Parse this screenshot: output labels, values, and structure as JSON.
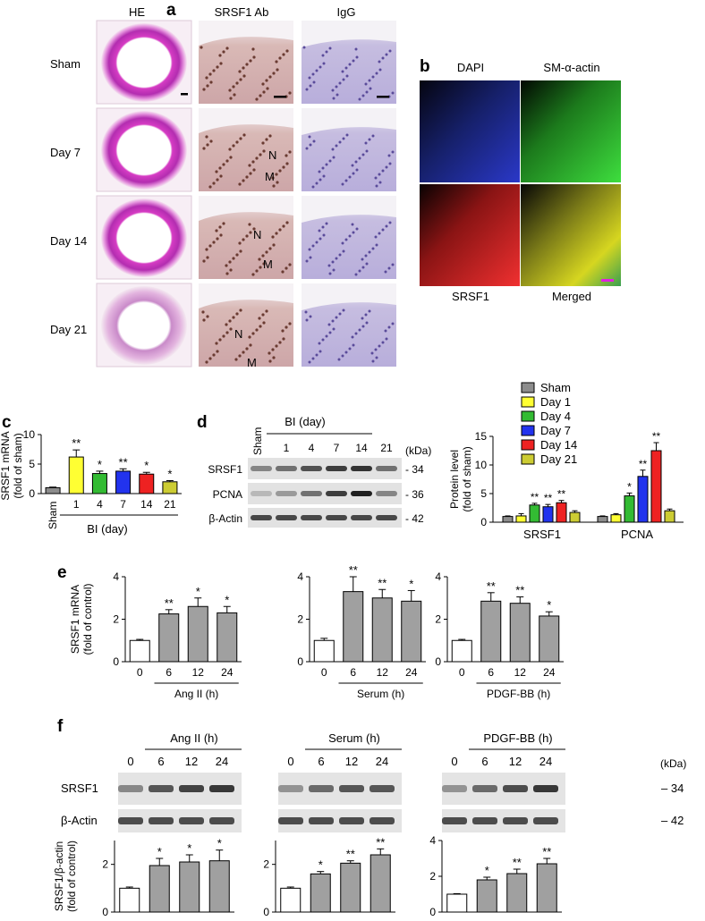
{
  "panels": {
    "a": {
      "letter": "a",
      "columns": [
        "HE",
        "SRSF1 Ab",
        "IgG"
      ],
      "rows": [
        "Sham",
        "Day 7",
        "Day 14",
        "Day 21"
      ],
      "layer_labels": [
        {
          "row": 1,
          "neointima": "N",
          "media": "M"
        },
        {
          "row": 2,
          "neointima": "N",
          "media": "M"
        },
        {
          "row": 3,
          "neointima": "N",
          "media": "M"
        }
      ]
    },
    "b": {
      "letter": "b",
      "top_labels": [
        "DAPI",
        "SM-α-actin"
      ],
      "bottom_labels": [
        "SRSF1",
        "Merged"
      ]
    },
    "c": {
      "letter": "c",
      "xlabel": "BI (day)",
      "sham_label": "Sham"
    },
    "d": {
      "letter": "d",
      "blot_header": "BI (day)",
      "sham_label": "Sham",
      "lanes": [
        "1",
        "4",
        "7",
        "14",
        "21"
      ],
      "kda_label": "(kDa)",
      "bands": [
        {
          "name": "SRSF1",
          "kda": "34"
        },
        {
          "name": "PCNA",
          "kda": "36"
        },
        {
          "name": "β-Actin",
          "kda": "42"
        }
      ]
    },
    "e": {
      "letter": "e"
    },
    "f": {
      "letter": "f",
      "kda_label": "(kDa)",
      "bands": [
        {
          "name": "SRSF1",
          "kda": "– 34"
        },
        {
          "name": "β-Actin",
          "kda": "– 42"
        }
      ],
      "groups": [
        {
          "treatment": "Ang II (h)",
          "lanes": [
            "0",
            "6",
            "12",
            "24"
          ]
        },
        {
          "treatment": "Serum (h)",
          "lanes": [
            "0",
            "6",
            "12",
            "24"
          ]
        },
        {
          "treatment": "PDGF-BB (h)",
          "lanes": [
            "0",
            "6",
            "12",
            "24"
          ]
        }
      ]
    }
  },
  "chart_data": [
    {
      "id": "c",
      "type": "bar",
      "categories": [
        "Sham",
        "1",
        "4",
        "7",
        "14",
        "21"
      ],
      "values": [
        1.0,
        6.2,
        3.4,
        3.8,
        3.3,
        2.0
      ],
      "errors": [
        0.1,
        1.2,
        0.4,
        0.4,
        0.3,
        0.2
      ],
      "significance": [
        "",
        "**",
        "*",
        "**",
        "*",
        "*"
      ],
      "colors": [
        "#8c8c8c",
        "#ffff33",
        "#33bb33",
        "#2233ee",
        "#ee2222",
        "#cccc33"
      ],
      "ylabel": "SRSF1 mRNA\n(fold of sham)",
      "xlabel": "BI (day)",
      "ylim": [
        0,
        10
      ],
      "yticks": [
        0,
        5,
        10
      ]
    },
    {
      "id": "d",
      "type": "bar",
      "categories": [
        "SRSF1",
        "PCNA"
      ],
      "series": [
        {
          "name": "Sham",
          "color": "#8c8c8c",
          "values": [
            1.0,
            1.0
          ],
          "errors": [
            0.1,
            0.1
          ],
          "significance": [
            "",
            ""
          ]
        },
        {
          "name": "Day 1",
          "color": "#ffff33",
          "values": [
            1.1,
            1.3
          ],
          "errors": [
            0.4,
            0.2
          ],
          "significance": [
            "",
            ""
          ]
        },
        {
          "name": "Day 4",
          "color": "#33bb33",
          "values": [
            3.0,
            4.6
          ],
          "errors": [
            0.3,
            0.5
          ],
          "significance": [
            "**",
            "*"
          ]
        },
        {
          "name": "Day 7",
          "color": "#2233ee",
          "values": [
            2.7,
            8.0
          ],
          "errors": [
            0.4,
            1.1
          ],
          "significance": [
            "**",
            "**"
          ]
        },
        {
          "name": "Day 14",
          "color": "#ee2222",
          "values": [
            3.4,
            12.5
          ],
          "errors": [
            0.4,
            1.4
          ],
          "significance": [
            "**",
            "**"
          ]
        },
        {
          "name": "Day 21",
          "color": "#cccc33",
          "values": [
            1.7,
            2.0
          ],
          "errors": [
            0.3,
            0.3
          ],
          "significance": [
            "",
            ""
          ]
        }
      ],
      "ylabel": "Protein level\n(fold of sham)",
      "ylim": [
        0,
        15
      ],
      "yticks": [
        0,
        5,
        10,
        15
      ]
    },
    {
      "id": "e1",
      "type": "bar",
      "categories": [
        "0",
        "6",
        "12",
        "24"
      ],
      "values": [
        1.0,
        2.25,
        2.6,
        2.3
      ],
      "errors": [
        0.05,
        0.2,
        0.4,
        0.3
      ],
      "significance": [
        "",
        "**",
        "*",
        "*"
      ],
      "xlabel": "Ang II (h)",
      "ylabel": "SRSF1 mRNA\n(fold of control)",
      "ylim": [
        0,
        4
      ],
      "yticks": [
        0,
        2,
        4
      ]
    },
    {
      "id": "e2",
      "type": "bar",
      "categories": [
        "0",
        "6",
        "12",
        "24"
      ],
      "values": [
        1.0,
        3.3,
        3.0,
        2.85
      ],
      "errors": [
        0.1,
        0.7,
        0.4,
        0.5
      ],
      "significance": [
        "",
        "**",
        "**",
        "*"
      ],
      "xlabel": "Serum (h)",
      "ylim": [
        0,
        4
      ],
      "yticks": [
        0,
        2,
        4
      ]
    },
    {
      "id": "e3",
      "type": "bar",
      "categories": [
        "0",
        "6",
        "12",
        "24"
      ],
      "values": [
        1.0,
        2.85,
        2.75,
        2.15
      ],
      "errors": [
        0.05,
        0.4,
        0.3,
        0.2
      ],
      "significance": [
        "",
        "**",
        "**",
        "*"
      ],
      "xlabel": "PDGF-BB (h)",
      "ylim": [
        0,
        4
      ],
      "yticks": [
        0,
        2,
        4
      ]
    },
    {
      "id": "f1",
      "type": "bar",
      "categories": [
        "0",
        "6",
        "12",
        "24"
      ],
      "values": [
        1.0,
        1.95,
        2.1,
        2.15
      ],
      "errors": [
        0.05,
        0.3,
        0.3,
        0.45
      ],
      "significance": [
        "",
        "*",
        "*",
        "*"
      ],
      "ylabel": "SRSF1/β-actin\n(fold of control)",
      "ylim": [
        0,
        3
      ],
      "yticks": [
        0,
        2
      ]
    },
    {
      "id": "f2",
      "type": "bar",
      "categories": [
        "0",
        "6",
        "12",
        "24"
      ],
      "values": [
        1.0,
        1.6,
        2.05,
        2.4
      ],
      "errors": [
        0.05,
        0.1,
        0.1,
        0.25
      ],
      "significance": [
        "",
        "*",
        "**",
        "**"
      ],
      "ylim": [
        0,
        3
      ],
      "yticks": [
        0,
        2
      ]
    },
    {
      "id": "f3",
      "type": "bar",
      "categories": [
        "0",
        "6",
        "12",
        "24"
      ],
      "values": [
        1.0,
        1.8,
        2.15,
        2.7
      ],
      "errors": [
        0.03,
        0.15,
        0.25,
        0.3
      ],
      "significance": [
        "",
        "*",
        "**",
        "**"
      ],
      "ylim": [
        0,
        4
      ],
      "yticks": [
        0,
        2,
        4
      ]
    }
  ]
}
